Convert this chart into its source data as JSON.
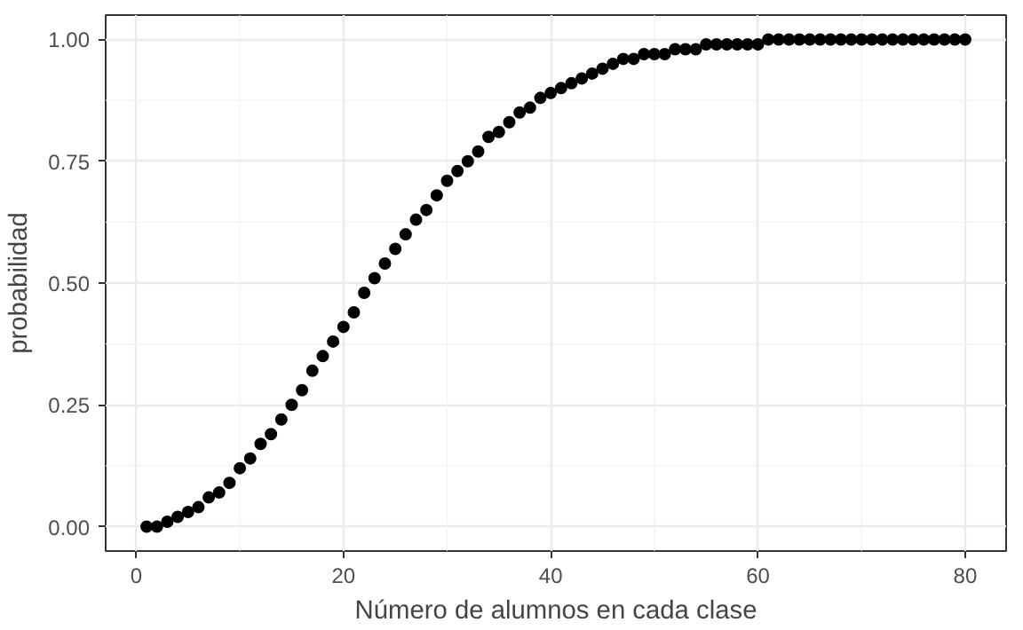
{
  "chart_data": {
    "type": "scatter",
    "xlabel": "Número de alumnos en cada clase",
    "ylabel": "probabilidad",
    "x": [
      1,
      2,
      3,
      4,
      5,
      6,
      7,
      8,
      9,
      10,
      11,
      12,
      13,
      14,
      15,
      16,
      17,
      18,
      19,
      20,
      21,
      22,
      23,
      24,
      25,
      26,
      27,
      28,
      29,
      30,
      31,
      32,
      33,
      34,
      35,
      36,
      37,
      38,
      39,
      40,
      41,
      42,
      43,
      44,
      45,
      46,
      47,
      48,
      49,
      50,
      51,
      52,
      53,
      54,
      55,
      56,
      57,
      58,
      59,
      60,
      61,
      62,
      63,
      64,
      65,
      66,
      67,
      68,
      69,
      70,
      71,
      72,
      73,
      74,
      75,
      76,
      77,
      78,
      79,
      80
    ],
    "series": [
      {
        "color": "#000000",
        "values": [
          0.0,
          0.0,
          0.01,
          0.02,
          0.03,
          0.04,
          0.06,
          0.07,
          0.09,
          0.12,
          0.14,
          0.17,
          0.19,
          0.22,
          0.25,
          0.28,
          0.32,
          0.35,
          0.38,
          0.41,
          0.44,
          0.48,
          0.51,
          0.54,
          0.57,
          0.6,
          0.63,
          0.65,
          0.68,
          0.71,
          0.73,
          0.75,
          0.77,
          0.8,
          0.81,
          0.83,
          0.85,
          0.86,
          0.88,
          0.89,
          0.9,
          0.91,
          0.92,
          0.93,
          0.94,
          0.95,
          0.96,
          0.96,
          0.97,
          0.97,
          0.97,
          0.98,
          0.98,
          0.98,
          0.99,
          0.99,
          0.99,
          0.99,
          0.99,
          0.99,
          1.0,
          1.0,
          1.0,
          1.0,
          1.0,
          1.0,
          1.0,
          1.0,
          1.0,
          1.0,
          1.0,
          1.0,
          1.0,
          1.0,
          1.0,
          1.0,
          1.0,
          1.0,
          1.0,
          1.0
        ]
      }
    ],
    "xlim": [
      -2.95,
      83.95
    ],
    "ylim": [
      -0.05,
      1.05
    ],
    "xticks": [
      0,
      20,
      40,
      60,
      80
    ],
    "yticks": [
      {
        "value": 0,
        "label": "0.00"
      },
      {
        "value": 0.25,
        "label": "0.25"
      },
      {
        "value": 0.5,
        "label": "0.50"
      },
      {
        "value": 0.75,
        "label": "0.75"
      },
      {
        "value": 1,
        "label": "1.00"
      }
    ],
    "grid": true,
    "marker": "circle"
  }
}
